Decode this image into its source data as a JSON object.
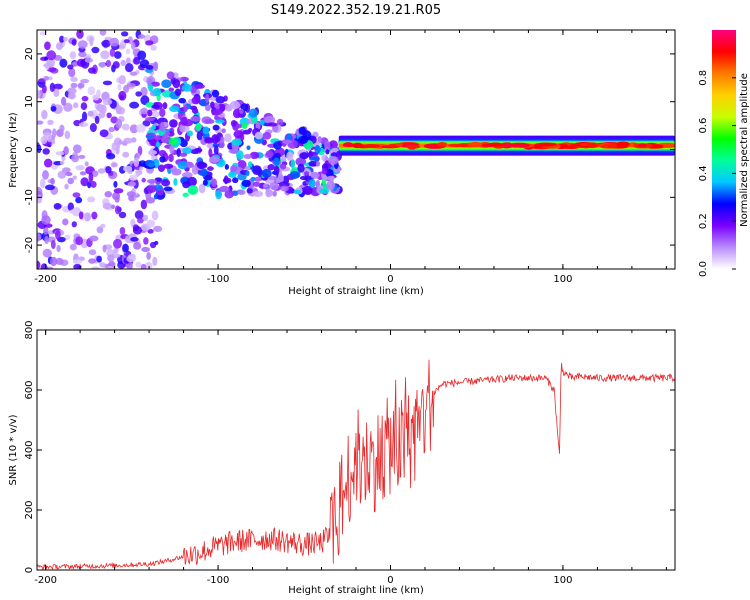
{
  "title": "S149.2022.352.19.21.R05",
  "chart_data": [
    {
      "type": "heatmap",
      "xlabel": "Height of straight line (km)",
      "ylabel": "Frequency (Hz)",
      "xlim": [
        -205,
        165
      ],
      "ylim": [
        -25,
        25
      ],
      "xticks": [
        -200,
        -100,
        0,
        100
      ],
      "yticks": [
        -20,
        -10,
        0,
        10,
        20
      ],
      "colorbar": {
        "label": "Normalized spectral amplitude",
        "ticks": [
          "0.0",
          "0.2",
          "0.4",
          "0.6",
          "0.8"
        ],
        "range": [
          0,
          1
        ],
        "colors": [
          "#ffffff",
          "#b98cff",
          "#7a00ff",
          "#0000ff",
          "#00c8ff",
          "#00ff9a",
          "#00ff00",
          "#c8ff00",
          "#ffd000",
          "#ff7a00",
          "#ff0000",
          "#ff0080"
        ]
      },
      "description_regions": [
        {
          "x_range": [
            -205,
            -140
          ],
          "freq_range": [
            -25,
            25
          ],
          "amplitude": 0.15
        },
        {
          "x_range": [
            -140,
            -30
          ],
          "freq_range": [
            -12,
            12
          ],
          "amplitude": 0.3
        },
        {
          "x_range": [
            -30,
            165
          ],
          "freq_center": 0.8,
          "amplitude": 0.85
        }
      ]
    },
    {
      "type": "line",
      "xlabel": "Height of straight line (km)",
      "ylabel": "SNR (10 * v/v)",
      "xlim": [
        -205,
        165
      ],
      "ylim": [
        0,
        800
      ],
      "xticks": [
        -200,
        -100,
        0,
        100
      ],
      "yticks": [
        0,
        200,
        400,
        600,
        800
      ],
      "series": [
        {
          "name": "SNR",
          "color": "#e8282a",
          "x": [
            -205,
            -180,
            -160,
            -140,
            -130,
            -120,
            -110,
            -100,
            -90,
            -80,
            -70,
            -60,
            -50,
            -40,
            -35,
            -30,
            -25,
            -20,
            -15,
            -10,
            -5,
            0,
            5,
            10,
            15,
            20,
            25,
            30,
            40,
            50,
            60,
            70,
            80,
            90,
            95,
            97,
            98,
            99,
            100,
            105,
            110,
            120,
            140,
            165
          ],
          "y": [
            10,
            12,
            15,
            20,
            30,
            45,
            60,
            80,
            95,
            100,
            105,
            95,
            85,
            90,
            120,
            200,
            300,
            380,
            350,
            360,
            380,
            420,
            400,
            430,
            450,
            520,
            590,
            620,
            625,
            630,
            635,
            640,
            640,
            640,
            600,
            450,
            380,
            700,
            660,
            640,
            645,
            640,
            640,
            640
          ]
        }
      ]
    }
  ]
}
